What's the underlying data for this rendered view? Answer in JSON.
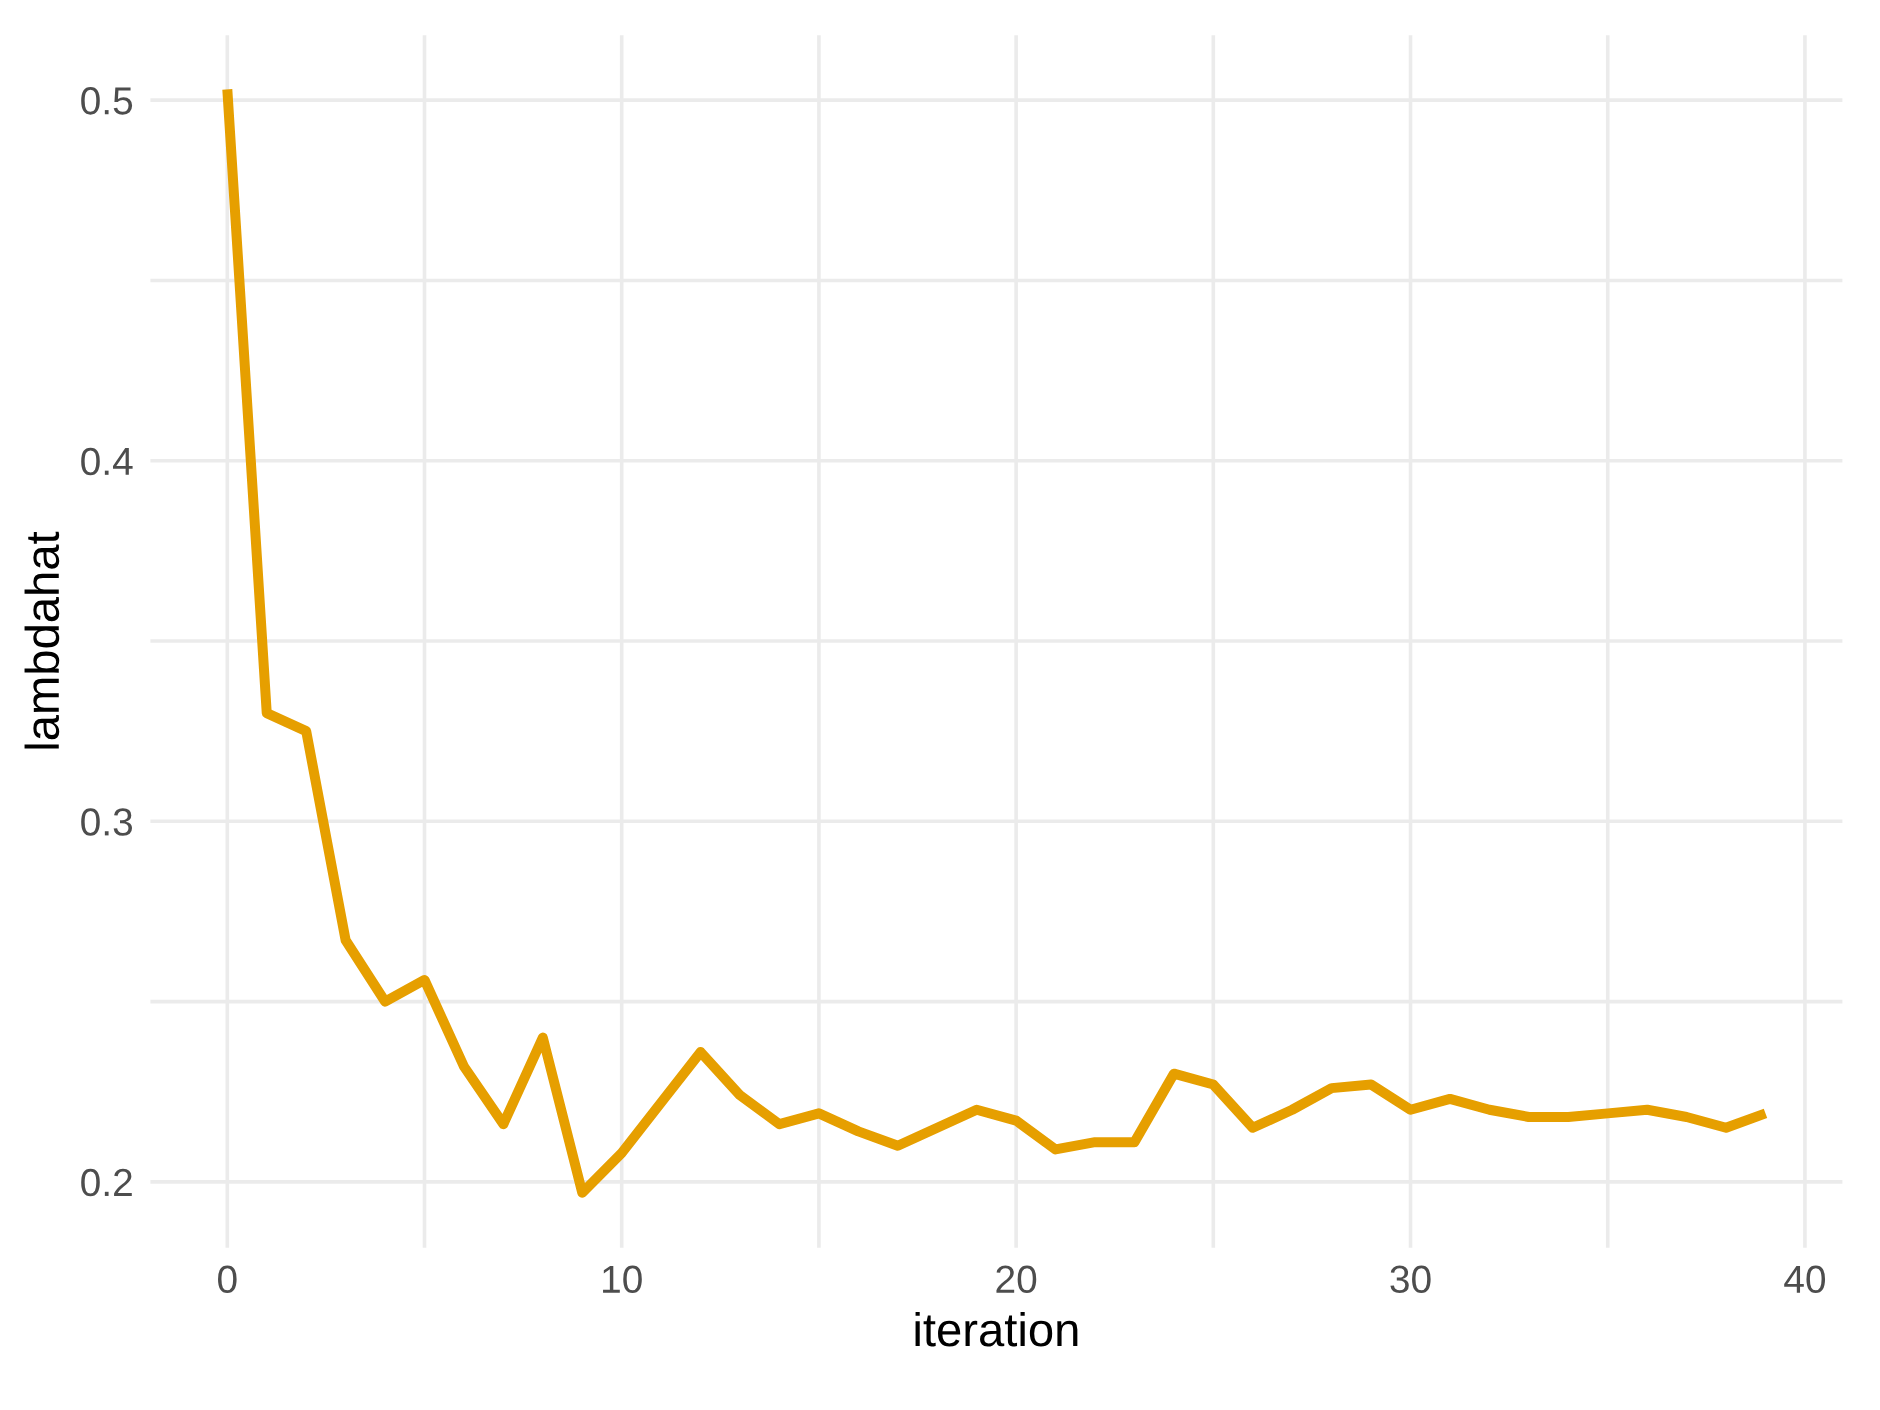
{
  "chart_data": {
    "type": "line",
    "xlabel": "iteration",
    "ylabel": "lambdahat",
    "x": [
      0,
      1,
      2,
      3,
      4,
      5,
      6,
      7,
      8,
      9,
      10,
      11,
      12,
      13,
      14,
      15,
      16,
      17,
      18,
      19,
      20,
      21,
      22,
      23,
      24,
      25,
      26,
      27,
      28,
      29,
      30,
      31,
      32,
      33,
      34,
      35,
      36,
      37,
      38,
      39
    ],
    "series": [
      {
        "color": "#e69f00",
        "values": [
          0.503,
          0.33,
          0.325,
          0.267,
          0.25,
          0.256,
          0.232,
          0.216,
          0.24,
          0.197,
          0.208,
          0.222,
          0.236,
          0.224,
          0.216,
          0.219,
          0.214,
          0.21,
          0.215,
          0.22,
          0.217,
          0.209,
          0.211,
          0.211,
          0.23,
          0.227,
          0.215,
          0.22,
          0.226,
          0.227,
          0.22,
          0.223,
          0.22,
          0.218,
          0.218,
          0.219,
          0.22,
          0.218,
          0.215,
          0.219
        ]
      }
    ],
    "xlim": [
      -1.95,
      40.95
    ],
    "ylim": [
      0.1817,
      0.518
    ],
    "xticks": [
      0,
      {
        "value": 5,
        "label": null
      },
      10,
      {
        "value": 15,
        "label": null
      },
      20,
      {
        "value": 25,
        "label": null
      },
      30,
      {
        "value": 35,
        "label": null
      },
      40
    ],
    "yticks": [
      0.2,
      {
        "value": 0.25,
        "label": null
      },
      0.3,
      {
        "value": 0.35,
        "label": null
      },
      0.4,
      {
        "value": 0.45,
        "label": null
      },
      0.5
    ],
    "grid": true,
    "line_style": "solid"
  }
}
